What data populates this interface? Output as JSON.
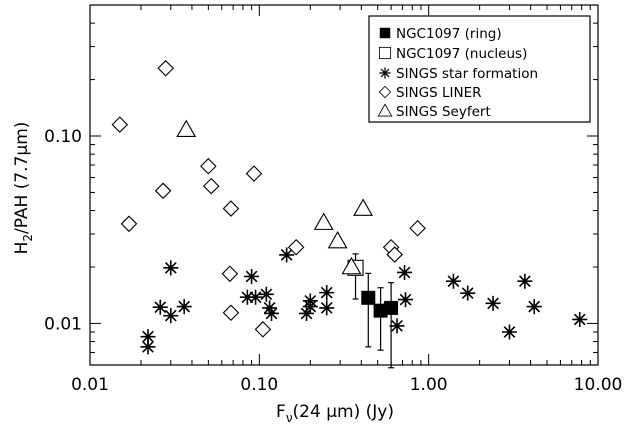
{
  "chart_data": {
    "type": "scatter",
    "xscale": "log",
    "yscale": "log",
    "xlim": [
      0.01,
      10.0
    ],
    "ylim": [
      0.006,
      0.5
    ],
    "xticks": [
      0.01,
      0.1,
      1.0,
      10.0
    ],
    "xtick_labels": [
      "0.01",
      "0.10",
      "1.00",
      "10.00"
    ],
    "yticks": [
      0.01,
      0.1
    ],
    "ytick_labels": [
      "0.01",
      "0.10"
    ],
    "xlabel": {
      "main": "F",
      "sub": "ν",
      "rest": "(24 μm) (Jy)"
    },
    "ylabel": {
      "main": "H",
      "sub": "2",
      "rest": "/PAH (7.7μm)"
    },
    "grid": false,
    "legend_position": "top-right",
    "series": [
      {
        "name": "NGC1097 (ring)",
        "marker": "filled-square",
        "points": [
          {
            "x": 0.44,
            "y": 0.0137,
            "ylo": 0.0075,
            "yhi": 0.0185
          },
          {
            "x": 0.52,
            "y": 0.0117,
            "ylo": 0.0072,
            "yhi": 0.0155
          },
          {
            "x": 0.6,
            "y": 0.0121,
            "ylo": 0.0058,
            "yhi": 0.0165
          }
        ]
      },
      {
        "name": "NGC1097 (nucleus)",
        "marker": "open-square",
        "points": [
          {
            "x": 0.37,
            "y": 0.0198,
            "ylo": 0.0135,
            "yhi": 0.0235
          }
        ]
      },
      {
        "name": "SINGS star formation",
        "marker": "asterisk",
        "points": [
          {
            "x": 0.022,
            "y": 0.0085
          },
          {
            "x": 0.022,
            "y": 0.0075
          },
          {
            "x": 0.026,
            "y": 0.0122
          },
          {
            "x": 0.03,
            "y": 0.0198
          },
          {
            "x": 0.03,
            "y": 0.011
          },
          {
            "x": 0.036,
            "y": 0.0123
          },
          {
            "x": 0.085,
            "y": 0.0138
          },
          {
            "x": 0.09,
            "y": 0.0178
          },
          {
            "x": 0.095,
            "y": 0.0138
          },
          {
            "x": 0.11,
            "y": 0.0143
          },
          {
            "x": 0.115,
            "y": 0.0121
          },
          {
            "x": 0.118,
            "y": 0.0113
          },
          {
            "x": 0.145,
            "y": 0.0232
          },
          {
            "x": 0.19,
            "y": 0.0113
          },
          {
            "x": 0.2,
            "y": 0.0132
          },
          {
            "x": 0.2,
            "y": 0.0123
          },
          {
            "x": 0.25,
            "y": 0.0146
          },
          {
            "x": 0.25,
            "y": 0.0121
          },
          {
            "x": 0.65,
            "y": 0.0097
          },
          {
            "x": 0.72,
            "y": 0.0187
          },
          {
            "x": 0.73,
            "y": 0.0134
          },
          {
            "x": 1.4,
            "y": 0.0168
          },
          {
            "x": 1.7,
            "y": 0.0145
          },
          {
            "x": 2.4,
            "y": 0.0128
          },
          {
            "x": 3.0,
            "y": 0.009
          },
          {
            "x": 3.7,
            "y": 0.0168
          },
          {
            "x": 4.2,
            "y": 0.0123
          },
          {
            "x": 7.8,
            "y": 0.0105
          }
        ]
      },
      {
        "name": "SINGS LINER",
        "marker": "diamond",
        "points": [
          {
            "x": 0.015,
            "y": 0.115
          },
          {
            "x": 0.017,
            "y": 0.034
          },
          {
            "x": 0.028,
            "y": 0.23
          },
          {
            "x": 0.027,
            "y": 0.051
          },
          {
            "x": 0.05,
            "y": 0.069
          },
          {
            "x": 0.052,
            "y": 0.054
          },
          {
            "x": 0.068,
            "y": 0.041
          },
          {
            "x": 0.067,
            "y": 0.0184
          },
          {
            "x": 0.068,
            "y": 0.0114
          },
          {
            "x": 0.093,
            "y": 0.063
          },
          {
            "x": 0.105,
            "y": 0.0093
          },
          {
            "x": 0.165,
            "y": 0.0255
          },
          {
            "x": 0.6,
            "y": 0.0255
          },
          {
            "x": 0.63,
            "y": 0.0233
          },
          {
            "x": 0.86,
            "y": 0.0322
          }
        ]
      },
      {
        "name": "SINGS Seyfert",
        "marker": "triangle",
        "points": [
          {
            "x": 0.037,
            "y": 0.108
          },
          {
            "x": 0.24,
            "y": 0.0345
          },
          {
            "x": 0.29,
            "y": 0.0275
          },
          {
            "x": 0.35,
            "y": 0.02
          },
          {
            "x": 0.41,
            "y": 0.041
          }
        ]
      }
    ]
  }
}
